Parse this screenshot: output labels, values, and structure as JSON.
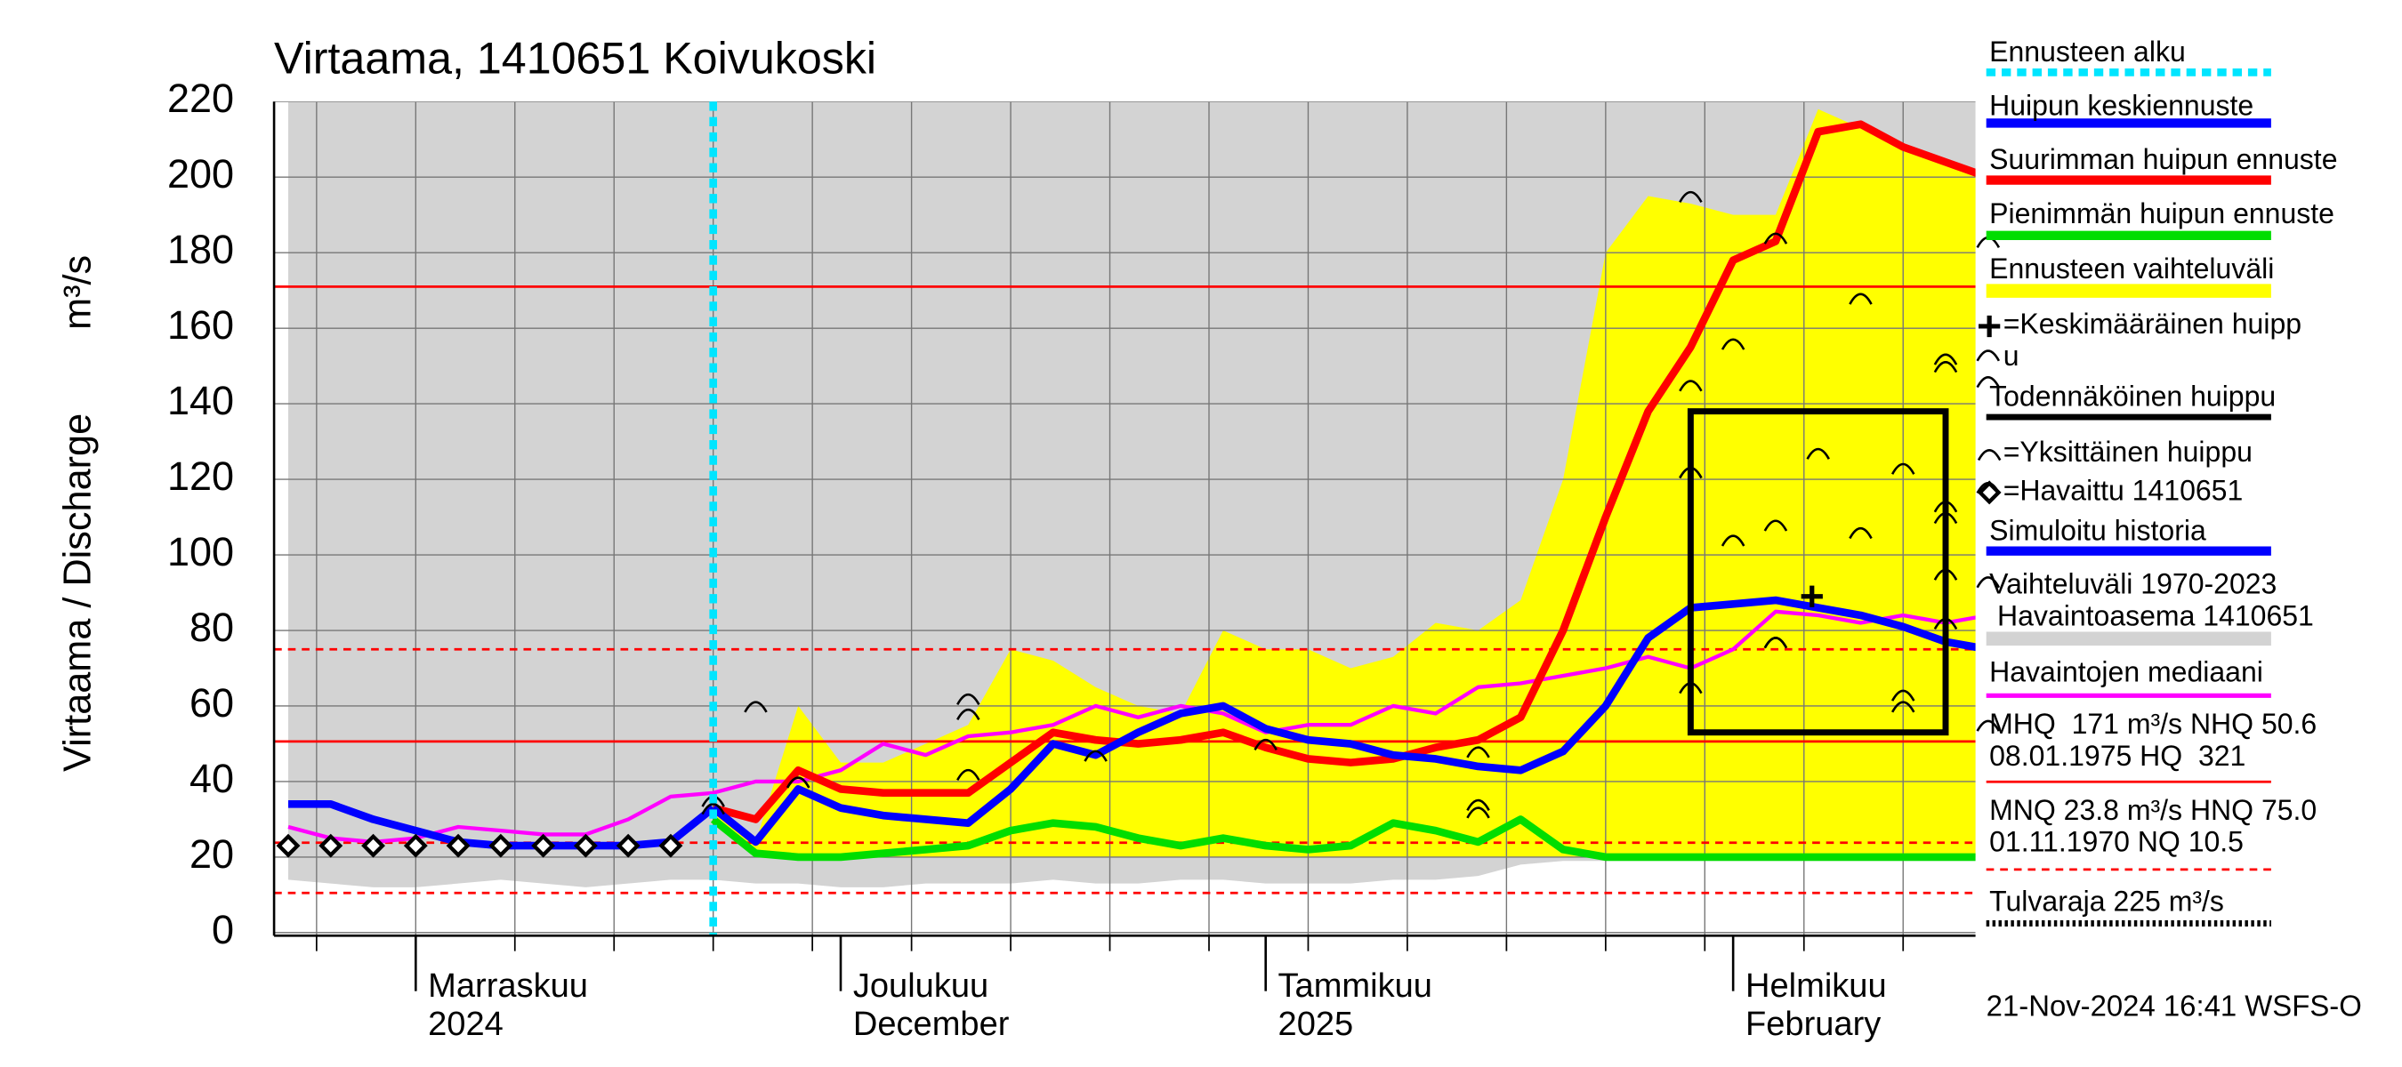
{
  "chart_data": {
    "type": "line",
    "title": "Virtaama, 1410651 Koivukoski",
    "ylabel": "Virtaama / Discharge",
    "yunit": "m³/s",
    "categories": [
      null,
      null,
      null,
      "Marraskuu\n2024",
      null,
      null,
      null,
      null,
      null,
      null,
      null,
      null,
      null,
      "Joulukuu\nDecember",
      null,
      null,
      null,
      null,
      null,
      null,
      null,
      null,
      null,
      "Tammikuu\n2025",
      null,
      null,
      null,
      null,
      null,
      null,
      null,
      null,
      null,
      null,
      "Helmikuu\nFebruary",
      null,
      null,
      null,
      null,
      null,
      null
    ],
    "ylim": [
      0,
      220
    ],
    "yticks": [
      0,
      20,
      40,
      60,
      80,
      100,
      120,
      140,
      160,
      180,
      200,
      220
    ],
    "grid": true,
    "series": [
      {
        "name": "Vaihteluväli 1970-2023\n Havaintoasema 1410651",
        "kind": "band",
        "color": "#d3d3d3",
        "low": [
          14,
          13,
          12,
          12,
          13,
          14,
          13,
          12,
          13,
          14,
          14,
          13,
          13,
          12,
          12,
          13,
          13,
          13,
          14,
          13,
          13,
          14,
          14,
          13,
          13,
          13,
          14,
          14,
          15,
          18,
          19,
          19,
          19,
          19,
          19,
          19,
          19,
          19,
          19,
          19,
          19
        ],
        "values": [
          220,
          220,
          220,
          220,
          220,
          220,
          220,
          220,
          220,
          220,
          220,
          220,
          220,
          220,
          220,
          220,
          220,
          220,
          220,
          220,
          220,
          220,
          220,
          220,
          220,
          220,
          220,
          220,
          220,
          220,
          220,
          220,
          220,
          220,
          220,
          220,
          220,
          220,
          220,
          220,
          220
        ]
      },
      {
        "name": "Ennusteen vaihteluväli",
        "kind": "band",
        "color": "#ffff00",
        "low": [
          null,
          null,
          null,
          null,
          null,
          null,
          null,
          null,
          null,
          null,
          30,
          20,
          20,
          20,
          20,
          20,
          20,
          20,
          20,
          20,
          20,
          20,
          20,
          20,
          20,
          20,
          20,
          20,
          20,
          20,
          20,
          20,
          20,
          20,
          20,
          20,
          20,
          20,
          20,
          20,
          20
        ],
        "values": [
          null,
          null,
          null,
          null,
          null,
          null,
          null,
          null,
          null,
          null,
          33,
          24,
          60,
          45,
          45,
          50,
          55,
          75,
          72,
          65,
          60,
          58,
          80,
          75,
          75,
          70,
          73,
          82,
          80,
          88,
          120,
          180,
          195,
          193,
          190,
          190,
          218,
          213,
          208,
          205,
          200
        ]
      },
      {
        "name": "Havaintojen mediaani",
        "kind": "line",
        "color": "#ff00ff",
        "width": 2.5,
        "values": [
          28,
          25,
          24,
          25,
          28,
          27,
          26,
          26,
          30,
          36,
          37,
          40,
          40,
          43,
          50,
          47,
          52,
          53,
          55,
          60,
          57,
          60,
          58,
          53,
          55,
          55,
          60,
          58,
          65,
          66,
          68,
          70,
          73,
          70,
          75,
          85,
          84,
          82,
          84,
          82,
          84
        ]
      },
      {
        "name": "Simuloitu historia",
        "kind": "line",
        "color": "#0000ff",
        "width": 5,
        "values": [
          34,
          34,
          30,
          27,
          24,
          23,
          23,
          23,
          23,
          24,
          33,
          null,
          null,
          null,
          null,
          null,
          null,
          null,
          null,
          null,
          null,
          null,
          null,
          null,
          null,
          null,
          null,
          null,
          null,
          null,
          null,
          null,
          null,
          null,
          null,
          null,
          null,
          null,
          null,
          null,
          null
        ]
      },
      {
        "name": "Pienimmän huipun ennuste",
        "kind": "line",
        "color": "#00dd00",
        "width": 5,
        "values": [
          null,
          null,
          null,
          null,
          null,
          null,
          null,
          null,
          null,
          null,
          30,
          21,
          20,
          20,
          21,
          22,
          23,
          27,
          29,
          28,
          25,
          23,
          25,
          23,
          22,
          23,
          29,
          27,
          24,
          30,
          22,
          20,
          20,
          20,
          20,
          20,
          20,
          20,
          20,
          20,
          20
        ]
      },
      {
        "name": "Suurimman huipun ennuste",
        "kind": "line",
        "color": "#ff0000",
        "width": 5,
        "values": [
          null,
          null,
          null,
          null,
          null,
          null,
          null,
          null,
          null,
          null,
          33,
          30,
          43,
          38,
          37,
          37,
          37,
          45,
          53,
          51,
          50,
          51,
          53,
          49,
          46,
          45,
          46,
          49,
          51,
          57,
          80,
          110,
          138,
          155,
          178,
          183,
          212,
          214,
          208,
          204,
          200
        ]
      },
      {
        "name": "Huipun keskiennuste",
        "kind": "line",
        "color": "#0000ff",
        "width": 5,
        "values": [
          null,
          null,
          null,
          null,
          null,
          null,
          null,
          null,
          null,
          null,
          33,
          24,
          38,
          33,
          31,
          30,
          29,
          38,
          50,
          47,
          53,
          58,
          60,
          54,
          51,
          50,
          47,
          46,
          44,
          43,
          48,
          60,
          78,
          86,
          87,
          88,
          86,
          84,
          81,
          77,
          75
        ]
      },
      {
        "name": "=Havaittu 1410651",
        "kind": "markers",
        "color": "#000000",
        "values": [
          23,
          23,
          23,
          23,
          23,
          23,
          23,
          23,
          23,
          23,
          null,
          null,
          null,
          null,
          null,
          null,
          null,
          null,
          null,
          null,
          null,
          null,
          null,
          null,
          null,
          null,
          null,
          null,
          null,
          null,
          null,
          null,
          null,
          null,
          null,
          null,
          null,
          null,
          null,
          null,
          null
        ]
      }
    ],
    "forecast_start": {
      "name": "Ennusteen alku",
      "color": "#00e5ff",
      "at": 10
    },
    "peaks": {
      "name": "=Yksittäinen huippu",
      "color": "#000000",
      "at": [
        10,
        10,
        11,
        12,
        12,
        16,
        16,
        16,
        19,
        23,
        28,
        28,
        28,
        33,
        33,
        33,
        33,
        33,
        34,
        34,
        35,
        35,
        35,
        35,
        36,
        37,
        37,
        38,
        38,
        38,
        39,
        39,
        39,
        39,
        39,
        39,
        40,
        40,
        40,
        40,
        40,
        40
      ],
      "values": [
        35,
        33,
        60,
        40,
        40,
        62,
        58,
        42,
        47,
        50,
        34,
        32,
        48,
        122,
        122,
        195,
        145,
        65,
        156,
        104,
        184,
        108,
        77,
        77,
        127,
        106,
        168,
        63,
        60,
        123,
        95,
        152,
        150,
        113,
        110,
        82,
        183,
        153,
        146,
        118,
        93,
        55
      ]
    },
    "mean_peak": {
      "name": "=Keskimääräinen huipp\nu",
      "color": "#000000",
      "at": 36,
      "value": 89
    },
    "probable_peak": {
      "name": "Todennäköinen huippu",
      "color": "#000000",
      "from": 33,
      "to": 39,
      "low": 53,
      "high": 138
    },
    "reference_lines": [
      {
        "name": "MHQ  171 m³/s NHQ 50.6\n08.01.1975 HQ  321",
        "color": "#ff0000",
        "style": "solid",
        "values": [
          171,
          50.6
        ]
      },
      {
        "name": "MNQ 23.8 m³/s HNQ 75.0\n01.11.1970 NQ 10.5",
        "color": "#ff0000",
        "style": "dashed",
        "values": [
          75.0,
          23.8,
          10.5
        ]
      },
      {
        "name": "Tulvaraja 225 m³/s",
        "color": "#000000",
        "style": "dotted",
        "values": []
      }
    ],
    "footer": "21-Nov-2024 16:41 WSFS-O"
  }
}
